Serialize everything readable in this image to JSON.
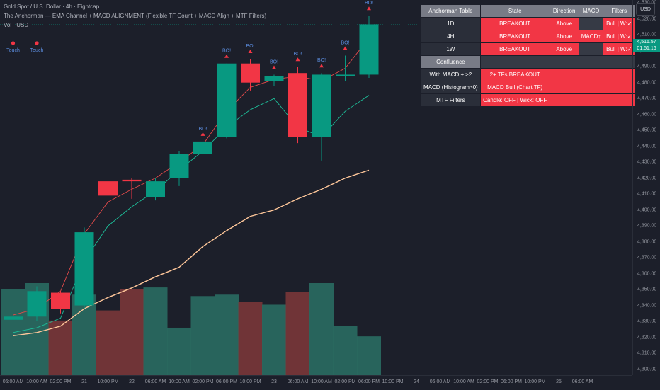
{
  "legend": {
    "title": "Gold Spot / U.S. Dollar · 4h · Eightcap",
    "indicator": "The Anchorman — EMA Channel + MACD ALIGNMENT (Flexible TF Count + MACD Align + MTF Filters)",
    "volume": "Vol · USD"
  },
  "currency_label": "USD",
  "last_price": "4,516.57",
  "countdown": "01:51:16",
  "colors": {
    "up": "#089981",
    "down": "#f23645",
    "ema_fast": "#e34a4a",
    "ema_mid": "#1dbf9a",
    "ema_slow": "#ffc79a",
    "signal_text": "#5b8cde"
  },
  "chart_data": {
    "type": "candlestick",
    "ylim": [
      4298,
      4535
    ],
    "y_ticks": [
      4300,
      4310,
      4320,
      4330,
      4340,
      4350,
      4360,
      4370,
      4380,
      4390,
      4400,
      4410,
      4420,
      4430,
      4440,
      4450,
      4460,
      4470,
      4480,
      4490,
      4500,
      4510,
      4520,
      4530
    ],
    "x_ticks": [
      {
        "i": 0,
        "label": "06:00 AM"
      },
      {
        "i": 1,
        "label": "10:00 AM"
      },
      {
        "i": 2,
        "label": "02:00 PM"
      },
      {
        "i": 3,
        "label": "21"
      },
      {
        "i": 4,
        "label": "10:00 PM"
      },
      {
        "i": 5,
        "label": "22"
      },
      {
        "i": 6,
        "label": "06:00 AM"
      },
      {
        "i": 7,
        "label": "10:00 AM"
      },
      {
        "i": 8,
        "label": "02:00 PM"
      },
      {
        "i": 9,
        "label": "06:00 PM"
      },
      {
        "i": 10,
        "label": "10:00 PM"
      },
      {
        "i": 11,
        "label": "23"
      },
      {
        "i": 12,
        "label": "06:00 AM"
      },
      {
        "i": 13,
        "label": "10:00 AM"
      },
      {
        "i": 14,
        "label": "02:00 PM"
      },
      {
        "i": 15,
        "label": "06:00 PM"
      },
      {
        "i": 16,
        "label": "10:00 PM"
      },
      {
        "i": 17,
        "label": "24"
      },
      {
        "i": 18,
        "label": "06:00 AM"
      },
      {
        "i": 19,
        "label": "10:00 AM"
      },
      {
        "i": 20,
        "label": "02:00 PM"
      },
      {
        "i": 21,
        "label": "06:00 PM"
      },
      {
        "i": 22,
        "label": "10:00 PM"
      },
      {
        "i": 23,
        "label": "25"
      },
      {
        "i": 24,
        "label": "06:00 AM"
      }
    ],
    "candles": [
      {
        "o": 4331,
        "h": 4331,
        "l": 4330,
        "c": 4333
      },
      {
        "o": 4333,
        "h": 4352,
        "l": 4330,
        "c": 4349
      },
      {
        "o": 4348,
        "h": 4349,
        "l": 4335,
        "c": 4338
      },
      {
        "o": 4340,
        "h": 4389,
        "l": 4338,
        "c": 4386
      },
      {
        "o": 4418,
        "h": 4420,
        "l": 4405,
        "c": 4409
      },
      {
        "o": 4419,
        "h": 4420,
        "l": 4407,
        "c": 4418
      },
      {
        "o": 4408,
        "h": 4420,
        "l": 4406,
        "c": 4418
      },
      {
        "o": 4420,
        "h": 4437,
        "l": 4415,
        "c": 4435
      },
      {
        "o": 4435,
        "h": 4443,
        "l": 4430,
        "c": 4443
      },
      {
        "o": 4446,
        "h": 4492,
        "l": 4445,
        "c": 4492
      },
      {
        "o": 4492,
        "h": 4495,
        "l": 4475,
        "c": 4480
      },
      {
        "o": 4481,
        "h": 4485,
        "l": 4478,
        "c": 4484
      },
      {
        "o": 4486,
        "h": 4490,
        "l": 4442,
        "c": 4446
      },
      {
        "o": 4446,
        "h": 4486,
        "l": 4431,
        "c": 4485
      },
      {
        "o": 4485,
        "h": 4497,
        "l": 4481,
        "c": 4485
      },
      {
        "o": 4485,
        "h": 4522,
        "l": 4483,
        "c": 4516.57
      }
    ],
    "ema_fast": [
      4334,
      4338,
      4349,
      4385,
      4405,
      4413,
      4420,
      4430,
      4441,
      4462,
      4477,
      4482,
      4484,
      4481,
      4489,
      4508
    ],
    "ema_mid": [
      4323,
      4326,
      4332,
      4368,
      4390,
      4402,
      4412,
      4425,
      4437,
      4452,
      4463,
      4470,
      4452,
      4446,
      4462,
      4472
    ],
    "ema_slow": [
      4321,
      4323,
      4327,
      4338,
      4345,
      4351,
      4358,
      4364,
      4377,
      4387,
      4396,
      4400,
      4407,
      4413,
      4420,
      4425
    ],
    "volumes": [
      60,
      64,
      38,
      56,
      45,
      60,
      61,
      33,
      55,
      56,
      51,
      49,
      58,
      64,
      34,
      27
    ],
    "signals": [
      {
        "i": 8,
        "label": "BO!"
      },
      {
        "i": 9,
        "label": "BO!"
      },
      {
        "i": 10,
        "label": "BO!"
      },
      {
        "i": 11,
        "label": "BO!"
      },
      {
        "i": 12,
        "label": "BO!"
      },
      {
        "i": 13,
        "label": "BO!"
      },
      {
        "i": 14,
        "label": "BO!"
      },
      {
        "i": 15,
        "label": "BO!"
      }
    ],
    "touch_markers": [
      {
        "i": 0,
        "label": "Touch"
      },
      {
        "i": 1,
        "label": "Touch"
      }
    ]
  },
  "table": {
    "headers": [
      "Anchorman Table",
      "State",
      "Direction",
      "MACD",
      "Filters"
    ],
    "rows": [
      {
        "tf": "1D",
        "state": "BREAKOUT",
        "direction": "Above",
        "macd": "",
        "filters": "Bull | W:✓"
      },
      {
        "tf": "4H",
        "state": "BREAKOUT",
        "direction": "Above",
        "macd": "MACD↑",
        "filters": "Bull | W:✓"
      },
      {
        "tf": "1W",
        "state": "BREAKOUT",
        "direction": "Above",
        "macd": "",
        "filters": "Bull | W:✓"
      }
    ],
    "confluence_label": "Confluence",
    "confluence_rows": [
      {
        "label": "With MACD + ≥2",
        "value": "2+ TFs BREAKOUT"
      },
      {
        "label": "MACD (Histogram>0)",
        "value": "MACD Bull (Chart TF)"
      },
      {
        "label": "MTF Filters",
        "value": "Candle: OFF | Wick: OFF"
      }
    ]
  }
}
